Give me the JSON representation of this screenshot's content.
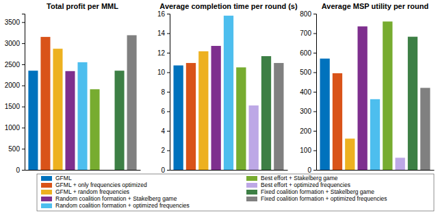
{
  "chart_data": [
    {
      "type": "bar",
      "title": "Total profit per MML",
      "categories": [
        "GFML",
        "GFML + only frequencies optimized",
        "GFML + random frequencies",
        "Random coalition formation + Stakelberg game",
        "Random coalition formation + optimized frequencies",
        "Best effort + Stakelberg game",
        "Best effort + optimized frequencies",
        "Fixed coalition formation + Stakelberg game",
        "Fixed coalition formation + optimized frequencies"
      ],
      "values": [
        2350,
        3150,
        2870,
        2340,
        2550,
        1910,
        null,
        2350,
        3190
      ],
      "colors": [
        "#0072bd",
        "#d95319",
        "#edb120",
        "#7e2f8e",
        "#4dbeee",
        "#77ac30",
        "#bda8e6",
        "#3d7f45",
        "#808080"
      ],
      "ylim": [
        0,
        3700
      ],
      "yticks": [
        0,
        500,
        1000,
        1500,
        2000,
        2500,
        3000,
        3500
      ],
      "grid": false,
      "tick_labels": "y",
      "legend": "bottom"
    },
    {
      "type": "bar",
      "title": "Average completion time per round (s)",
      "values": [
        10.7,
        10.95,
        12.15,
        12.7,
        15.8,
        10.5,
        6.6,
        11.65,
        10.95
      ],
      "colors": [
        "#0072bd",
        "#d95319",
        "#edb120",
        "#7e2f8e",
        "#4dbeee",
        "#77ac30",
        "#bda8e6",
        "#3d7f45",
        "#808080"
      ],
      "ylim": [
        0,
        16
      ],
      "yticks": [
        0,
        2,
        4,
        6,
        8,
        10,
        12,
        14,
        16
      ],
      "grid": false,
      "tick_labels": "y"
    },
    {
      "type": "bar",
      "title": "Average MSP utility per round",
      "values": [
        570,
        495,
        160,
        735,
        362,
        760,
        62,
        682,
        420
      ],
      "colors": [
        "#0072bd",
        "#d95319",
        "#edb120",
        "#7e2f8e",
        "#4dbeee",
        "#77ac30",
        "#bda8e6",
        "#3d7f45",
        "#808080"
      ],
      "ylim": [
        0,
        800
      ],
      "yticks": [
        0,
        100,
        200,
        300,
        400,
        500,
        600,
        700,
        800
      ],
      "grid": false,
      "tick_labels": "y"
    }
  ]
}
